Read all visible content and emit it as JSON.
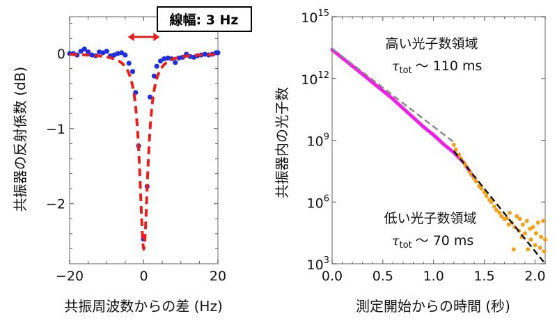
{
  "chart_data": [
    {
      "type": "scatter",
      "xlabel": "共振周波数からの差 (Hz)",
      "ylabel": "共振器の反射係数 (dB)",
      "xlim": [
        -20,
        20
      ],
      "ylim": [
        -2.8,
        0.49
      ],
      "xticks": [
        -20,
        0,
        20
      ],
      "xtick_labels": [
        "−20",
        "0",
        "20"
      ],
      "yticks": [
        0,
        -1,
        -2
      ],
      "ytick_labels": [
        "0",
        "−1",
        "−2"
      ],
      "grid": false,
      "annotation_box": "線幅: 3 Hz",
      "arrow": {
        "x": [
          -4.3,
          4.3
        ],
        "y": 0.22,
        "color": "#e8201c"
      },
      "series": [
        {
          "kind": "points",
          "color": "#1f2fe0",
          "x": [
            -20,
            -19,
            -18,
            -17,
            -16,
            -15,
            -14,
            -13,
            -12,
            -11,
            -10,
            -9,
            -8,
            -7,
            -6,
            -5,
            -4,
            -3,
            -2.2,
            -1.4,
            -0.1,
            0.9,
            1.7,
            2.8,
            3.5,
            4.5,
            5.5,
            6.5,
            7.5,
            8.5,
            9.5,
            10.5,
            11.5,
            12.5,
            13.5,
            14.5,
            15.5,
            16.5,
            17.5,
            18.5,
            19.5,
            20
          ],
          "y": [
            0.0,
            0.0,
            -0.02,
            0.03,
            0.06,
            0.02,
            -0.02,
            -0.03,
            0.02,
            0.01,
            0.03,
            -0.03,
            -0.02,
            0.0,
            0.01,
            -0.02,
            -0.13,
            -0.24,
            -0.52,
            -1.23,
            -2.47,
            -1.77,
            -0.58,
            -0.3,
            -0.17,
            -0.1,
            -0.07,
            -0.06,
            -0.07,
            -0.12,
            -0.06,
            -0.05,
            -0.01,
            -0.04,
            -0.05,
            -0.03,
            -0.02,
            -0.01,
            -0.02,
            -0.01,
            0.01,
            0.01
          ]
        },
        {
          "kind": "fit-dashed",
          "color": "#e8201c",
          "model": "lorentzian",
          "center": 0,
          "depth": -2.6,
          "half_width": 1.35
        }
      ]
    },
    {
      "type": "scatter",
      "xlabel": "測定開始からの時間 (秒)",
      "ylabel": "共振器内の光子数",
      "xlim": [
        0,
        2.1
      ],
      "ylim": [
        1000.0,
        1000000000000000.0
      ],
      "yscale": "log",
      "xticks": [
        0,
        0.5,
        1.0,
        1.5,
        2.0
      ],
      "xtick_labels": [
        "0.0",
        "0.5",
        "1.0",
        "1.5",
        "2.0"
      ],
      "yticks": [
        1000.0,
        1000000.0,
        1000000000.0,
        1000000000000.0,
        1000000000000000.0
      ],
      "ytick_exponents": [
        "3",
        "6",
        "9",
        "12",
        "15"
      ],
      "ytick_base": "10",
      "grid": false,
      "annotations": [
        {
          "title": "高い光子数領域",
          "tau_symbol": "τ",
          "tau_sub": "tot",
          "tau_value": "～ 110 ms"
        },
        {
          "title": "低い光子数領域",
          "tau_symbol": "τ",
          "tau_sub": "tot",
          "tau_value": "～ 70 ms"
        }
      ],
      "series": [
        {
          "kind": "high-photon-data",
          "color": "#f01ee6",
          "x": [
            0,
            0.1,
            0.2,
            0.3,
            0.4,
            0.5,
            0.6,
            0.7,
            0.8,
            0.9,
            1.0,
            1.1,
            1.2,
            1.3,
            1.38
          ],
          "y": [
            25000000000000.0,
            10000000000000.0,
            4000000000000.0,
            1600000000000.0,
            630000000000.0,
            250000000000.0,
            100000000000.0,
            35000000000.0,
            12600000000.0,
            4500000000.0,
            1800000000.0,
            630000000.0,
            250000000.0,
            80000000.0,
            20000000.0
          ]
        },
        {
          "kind": "low-photon-data",
          "color": "#f5a01a",
          "x": [
            1.2,
            1.22,
            1.25,
            1.27,
            1.3,
            1.32,
            1.35,
            1.37,
            1.4,
            1.42,
            1.45,
            1.47,
            1.5,
            1.52,
            1.55,
            1.57,
            1.6,
            1.62,
            1.65,
            1.67,
            1.7,
            1.72,
            1.74,
            1.75,
            1.77,
            1.79,
            1.8,
            1.82,
            1.84,
            1.85,
            1.87,
            1.88,
            1.9,
            1.92,
            1.93,
            1.95,
            1.96,
            1.98,
            2.0,
            2.01,
            2.03,
            2.05,
            2.06,
            2.08,
            2.09,
            2.1
          ],
          "y": [
            600000000.0,
            350000000.0,
            200000000.0,
            130000000.0,
            80000000.0,
            55000000.0,
            32000000.0,
            22000000.0,
            14000000.0,
            10000000.0,
            6000000.0,
            4500000.0,
            3000000.0,
            2000000.0,
            1300000.0,
            1000000.0,
            600000.0,
            400000.0,
            300000.0,
            200000.0,
            150000.0,
            160000.0,
            80000.0,
            300000.0,
            100000.0,
            5000.0,
            60000.0,
            200000.0,
            40000.0,
            150000.0,
            20000.0,
            80000.0,
            30000.0,
            120000.0,
            5000.0,
            50000.0,
            15000.0,
            60000.0,
            8000.0,
            30000.0,
            100000.0,
            6000.0,
            20000.0,
            120000.0,
            4000.0,
            15000.0
          ]
        },
        {
          "kind": "fit-dashed",
          "color": "#888888",
          "x": [
            0,
            1.2
          ],
          "y": [
            28000000000000.0,
            800000000.0
          ]
        },
        {
          "kind": "fit-dashed",
          "color": "#111111",
          "x": [
            1.2,
            2.1
          ],
          "y": [
            300000000.0,
            1000.0
          ]
        }
      ]
    }
  ]
}
